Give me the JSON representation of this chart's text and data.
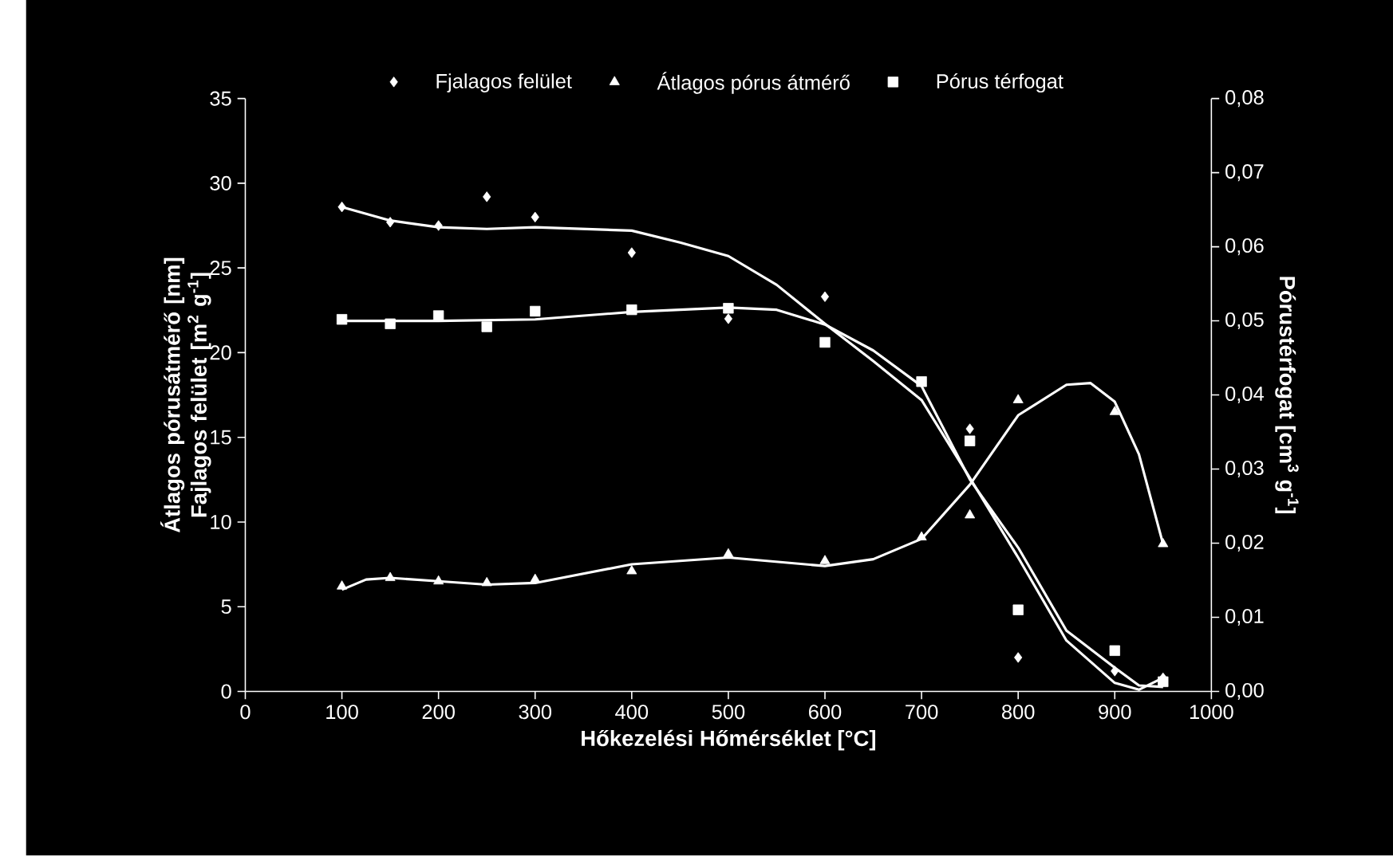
{
  "chart_data": {
    "type": "scatter",
    "xlabel": "Hőkezelési Hőmérséklet [°C]",
    "ylabel": "Átlagos pórusátmérő [nm] Fajlagos felület [m$^{2}$ g$^{-1}$]",
    "y2label": "Pórustérfogat [cm$^{3}$ g$^{-1}$]",
    "x": [
      100,
      150,
      200,
      250,
      300,
      400,
      500,
      600,
      700,
      750,
      800,
      900,
      950
    ],
    "xlim": [
      0,
      1000
    ],
    "xticks": [
      0,
      100,
      200,
      300,
      400,
      500,
      600,
      700,
      800,
      900,
      1000
    ],
    "ylim": [
      0,
      35
    ],
    "yticks": [
      0,
      5,
      10,
      15,
      20,
      25,
      30,
      35
    ],
    "y2lim": [
      0,
      0.08
    ],
    "y2ticks": [
      {
        "value": 0,
        "label": "0,00"
      },
      {
        "value": 0.01,
        "label": "0,01"
      },
      {
        "value": 0.02,
        "label": "0,02"
      },
      {
        "value": 0.03,
        "label": "0,03"
      },
      {
        "value": 0.04,
        "label": "0,04"
      },
      {
        "value": 0.05,
        "label": "0,05"
      },
      {
        "value": 0.06,
        "label": "0,06"
      },
      {
        "value": 0.07,
        "label": "0,07"
      },
      {
        "value": 0.08,
        "label": "0,08"
      }
    ],
    "legend": "top",
    "grid": false,
    "series": [
      {
        "name": "Fjalagos felület",
        "color": "#ffffff",
        "marker": "diamond",
        "values": [
          28.6,
          27.7,
          27.5,
          29.2,
          28.0,
          25.9,
          22.0,
          23.3,
          null,
          15.5,
          2.0,
          1.2,
          0.8
        ]
      },
      {
        "name": "Átlagos pórus átmérő",
        "color": "#ffffff",
        "marker": "triangle",
        "values": [
          6.2,
          6.7,
          6.5,
          6.4,
          6.6,
          7.1,
          8.1,
          7.7,
          9.1,
          10.4,
          17.2,
          16.5,
          8.7
        ]
      },
      {
        "name": "Pórus térfogat",
        "color": "#ffffff",
        "marker": "square",
        "axis": "y2",
        "values": [
          0.0502,
          0.0496,
          0.0507,
          0.0492,
          0.0513,
          0.0515,
          0.0517,
          0.0471,
          0.0418,
          0.0338,
          0.011,
          0.0055,
          0.0013
        ]
      },
      {
        "type": "line",
        "color": "#ffffff",
        "marker": "none",
        "x": [
          100,
          150,
          200,
          250,
          300,
          400,
          450,
          500,
          550,
          600,
          650,
          700,
          750,
          800,
          850,
          900,
          925,
          950
        ],
        "values": [
          28.6,
          27.8,
          27.4,
          27.3,
          27.4,
          27.2,
          26.5,
          25.7,
          24.0,
          21.7,
          19.5,
          17.2,
          12.6,
          7.9,
          3.0,
          0.5,
          0.1,
          0.8
        ]
      },
      {
        "type": "line",
        "color": "#ffffff",
        "marker": "none",
        "x": [
          100,
          125,
          150,
          200,
          250,
          300,
          400,
          500,
          600,
          650,
          700,
          750,
          800,
          850,
          875,
          900,
          925,
          950
        ],
        "values": [
          6.0,
          6.6,
          6.7,
          6.5,
          6.3,
          6.4,
          7.5,
          7.9,
          7.4,
          7.8,
          9.0,
          12.2,
          16.3,
          18.1,
          18.2,
          17.1,
          14.0,
          8.7
        ]
      },
      {
        "type": "line",
        "color": "#ffffff",
        "marker": "none",
        "axis": "y2",
        "x": [
          100,
          200,
          300,
          400,
          500,
          550,
          600,
          650,
          700,
          750,
          800,
          850,
          900,
          925,
          950
        ],
        "values": [
          0.05,
          0.05,
          0.0502,
          0.0512,
          0.0518,
          0.0515,
          0.0495,
          0.046,
          0.0412,
          0.0286,
          0.0194,
          0.0082,
          0.0032,
          0.0008,
          0.0006
        ]
      }
    ]
  }
}
